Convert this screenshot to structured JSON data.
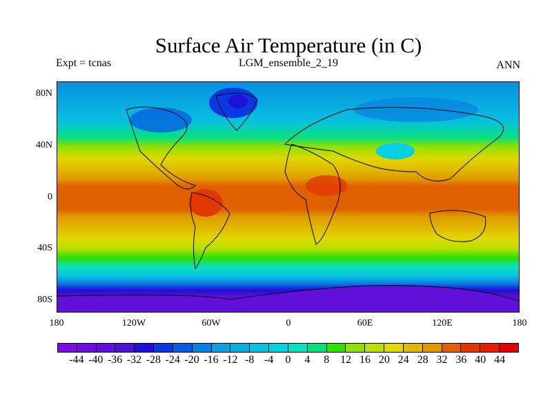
{
  "title": "Surface Air Temperature (in C)",
  "expt": "Expt = tcnas",
  "case": "LGM_ensemble_2_19",
  "season": "ANN",
  "lat_labels": [
    "80N",
    "40N",
    "0",
    "40S",
    "80S"
  ],
  "lat_values": [
    80,
    40,
    0,
    -40,
    -80
  ],
  "lon_labels": [
    "180",
    "120W",
    "60W",
    "0",
    "60E",
    "120E",
    "180"
  ],
  "lon_values": [
    -180,
    -120,
    -60,
    0,
    60,
    120,
    180
  ],
  "colorbar": {
    "labels": [
      "-44",
      "-40",
      "-36",
      "-32",
      "-28",
      "-24",
      "-20",
      "-16",
      "-12",
      "-8",
      "-4",
      "0",
      "4",
      "8",
      "12",
      "16",
      "20",
      "24",
      "28",
      "32",
      "36",
      "40",
      "44"
    ],
    "colors": [
      "#7a0ee0",
      "#6c0ddc",
      "#6010d8",
      "#5010d8",
      "#2010d8",
      "#0838e0",
      "#0860e0",
      "#0880e0",
      "#08a0e0",
      "#08b0e0",
      "#08c0e0",
      "#08d0e0",
      "#08e0c0",
      "#08e080",
      "#30e000",
      "#90e000",
      "#b8e000",
      "#e0d800",
      "#e0b800",
      "#e09800",
      "#e06000",
      "#e03800",
      "#e02000",
      "#e00000"
    ]
  },
  "chart_data": {
    "type": "heatmap",
    "title": "Surface Air Temperature (in C)",
    "units": "C",
    "zonal_mean_approx": {
      "lat": [
        90,
        80,
        60,
        40,
        20,
        0,
        -20,
        -40,
        -60,
        -70,
        -80,
        -90
      ],
      "temp": [
        -22,
        -20,
        -4,
        12,
        24,
        30,
        24,
        12,
        0,
        -20,
        -40,
        -44
      ]
    },
    "xlim": [
      -180,
      180
    ],
    "ylim": [
      -90,
      90
    ]
  }
}
